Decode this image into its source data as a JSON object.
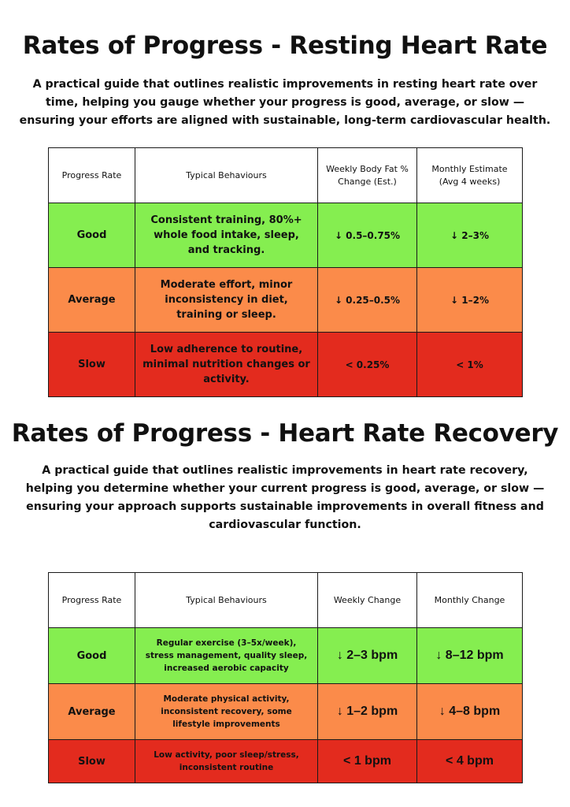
{
  "section1": {
    "title": "Rates of Progress - Resting Heart Rate",
    "intro": "A practical guide that outlines realistic improvements in resting heart rate over time, helping you gauge whether your progress is good, average, or slow — ensuring your efforts are aligned with sustainable, long-term cardiovascular health.",
    "headers": [
      "Progress Rate",
      "Typical Behaviours",
      "Weekly Body Fat % Change (Est.)",
      "Monthly Estimate (Avg 4 weeks)"
    ],
    "rows": [
      {
        "level": "Good",
        "behaviours": "Consistent training, 80%+ whole food intake, sleep, and tracking.",
        "weekly": "↓ 0.5–0.75%",
        "monthly": "↓ 2–3%",
        "color": "#85ee50"
      },
      {
        "level": "Average",
        "behaviours": "Moderate effort, minor inconsistency in diet, training or sleep.",
        "weekly": "↓ 0.25–0.5%",
        "monthly": "↓ 1–2%",
        "color": "#fb8b4a"
      },
      {
        "level": "Slow",
        "behaviours": "Low adherence to routine, minimal nutrition changes or activity.",
        "weekly": "< 0.25%",
        "monthly": "< 1%",
        "color": "#e32b1e"
      }
    ]
  },
  "section2": {
    "title": "Rates of Progress - Heart Rate Recovery",
    "intro": "A practical guide that outlines realistic improvements in heart rate recovery, helping you determine whether your current progress is good, average, or slow — ensuring your approach supports sustainable improvements in overall fitness and cardiovascular function.",
    "headers": [
      "Progress Rate",
      "Typical Behaviours",
      "Weekly Change",
      "Monthly Change"
    ],
    "rows": [
      {
        "level": "Good",
        "behaviours": "Regular exercise (3–5x/week), stress management, quality sleep, increased aerobic capacity",
        "weekly": "↓ 2–3 bpm",
        "monthly": "↓ 8–12 bpm",
        "color": "#85ee50"
      },
      {
        "level": "Average",
        "behaviours": "Moderate physical activity, inconsistent recovery, some lifestyle improvements",
        "weekly": "↓ 1–2 bpm",
        "monthly": "↓ 4–8 bpm",
        "color": "#fb8b4a"
      },
      {
        "level": "Slow",
        "behaviours": "Low activity, poor sleep/stress, inconsistent routine",
        "weekly": "< 1 bpm",
        "monthly": "< 4 bpm",
        "color": "#e32b1e"
      }
    ]
  }
}
